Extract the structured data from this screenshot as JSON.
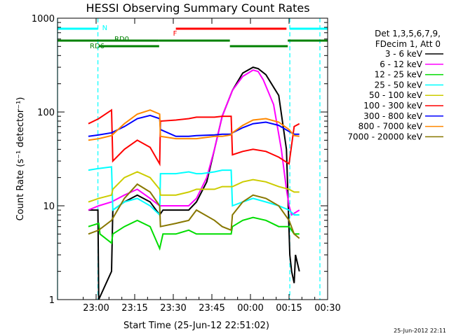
{
  "chart_data": {
    "type": "line",
    "title": "HESSI Observing Summary Count Rates",
    "xlabel": "Start Time (25-Jun-12 22:51:02)",
    "ylabel": "Count Rate (s⁻¹ detector⁻¹)",
    "xlim_minutes": [
      -6,
      99
    ],
    "x_ticks": [
      {
        "min": 9,
        "label": "23:00"
      },
      {
        "min": 24,
        "label": "23:15"
      },
      {
        "min": 39,
        "label": "23:30"
      },
      {
        "min": 54,
        "label": "23:45"
      },
      {
        "min": 69,
        "label": "00:00"
      },
      {
        "min": 84,
        "label": "00:15"
      },
      {
        "min": 99,
        "label": "00:30"
      }
    ],
    "y_scale": "log",
    "ylim": [
      1,
      1000
    ],
    "y_ticks": [
      {
        "value": 1,
        "label": "1"
      },
      {
        "value": 10,
        "label": "10"
      },
      {
        "value": 100,
        "label": "100"
      },
      {
        "value": 1000,
        "label": "1000"
      }
    ],
    "legend_header": [
      "Det 1,3,5,6,7,9,",
      "FDecim 1, Att 0"
    ],
    "series": [
      {
        "name": "3 - 6 keV",
        "color": "#000000",
        "x": [
          6,
          9.7,
          10,
          15,
          15.5,
          20,
          25,
          30,
          33.7,
          35,
          40,
          45,
          48,
          52,
          55,
          58,
          62,
          66,
          70,
          72,
          75,
          80,
          83,
          84.3,
          85,
          86,
          86.5,
          88
        ],
        "y": [
          9,
          9,
          1,
          2,
          9,
          11,
          13,
          11,
          8,
          9,
          9,
          9,
          11,
          18,
          40,
          90,
          170,
          260,
          300,
          290,
          250,
          150,
          40,
          3,
          2,
          1.5,
          3,
          2
        ]
      },
      {
        "name": "6 - 12 keV",
        "color": "#ff00ff",
        "x": [
          6,
          10,
          15,
          20,
          25,
          30,
          33.7,
          35,
          40,
          45,
          48,
          52,
          55,
          58,
          62,
          66,
          70,
          72,
          74,
          78,
          81,
          83,
          84,
          85,
          88
        ],
        "y": [
          9,
          10,
          11,
          13,
          15,
          12,
          10,
          10,
          10,
          10,
          12,
          20,
          40,
          90,
          170,
          240,
          280,
          270,
          220,
          120,
          40,
          15,
          10,
          8,
          9
        ]
      },
      {
        "name": "12 - 25 keV",
        "color": "#00dd00",
        "x": [
          6,
          10,
          10.5,
          15,
          15.5,
          20,
          25,
          30,
          33.7,
          35,
          40,
          45,
          48,
          52,
          55,
          58,
          61.5,
          62,
          66,
          70,
          75,
          80,
          84,
          86,
          88
        ],
        "y": [
          6,
          6.5,
          5,
          4,
          5,
          6,
          7,
          6,
          3.5,
          5,
          5,
          5.5,
          5,
          5,
          5,
          5,
          5,
          6,
          7,
          7.5,
          7,
          6,
          6,
          5,
          5
        ]
      },
      {
        "name": "25 - 50 keV",
        "color": "#00ffff",
        "x": [
          6,
          10,
          15,
          15.5,
          20,
          25,
          30,
          33.7,
          34,
          40,
          45,
          48,
          50,
          55,
          58,
          61.5,
          62,
          66,
          70,
          75,
          80,
          84,
          86,
          88
        ],
        "y": [
          24,
          25,
          26,
          9,
          11,
          12,
          10,
          8,
          22,
          22,
          23,
          22,
          22,
          23,
          24,
          24,
          10,
          11,
          12,
          11,
          10,
          9,
          8,
          8
        ]
      },
      {
        "name": "50 - 100 keV",
        "color": "#cccc00",
        "x": [
          6,
          10,
          15,
          15.5,
          20,
          25,
          30,
          33.7,
          34,
          40,
          45,
          48,
          55,
          58,
          61.5,
          62,
          66,
          70,
          75,
          80,
          84,
          86,
          88
        ],
        "y": [
          11,
          12,
          13,
          15,
          20,
          23,
          20,
          15,
          13,
          13,
          14,
          15,
          15,
          16,
          16,
          16,
          18,
          19,
          18,
          16,
          15,
          14,
          14
        ]
      },
      {
        "name": "100 - 300 keV",
        "color": "#ff0000",
        "x": [
          6,
          10,
          15,
          15.5,
          20,
          25,
          30,
          33.7,
          34,
          40,
          45,
          48,
          55,
          58,
          61.5,
          62,
          66,
          70,
          75,
          80,
          84,
          86,
          88
        ],
        "y": [
          75,
          85,
          105,
          30,
          40,
          50,
          42,
          28,
          80,
          82,
          85,
          88,
          88,
          90,
          90,
          35,
          38,
          40,
          38,
          33,
          28,
          70,
          75
        ]
      },
      {
        "name": "300 - 800 keV",
        "color": "#0000ff",
        "x": [
          6,
          10,
          15,
          20,
          25,
          30,
          33.7,
          34,
          40,
          45,
          48,
          55,
          58,
          61.5,
          62,
          66,
          70,
          75,
          80,
          84,
          86,
          88
        ],
        "y": [
          55,
          57,
          60,
          70,
          85,
          92,
          85,
          65,
          55,
          55,
          56,
          57,
          58,
          58,
          60,
          68,
          75,
          78,
          72,
          62,
          58,
          58
        ]
      },
      {
        "name": "800 - 7000 keV",
        "color": "#ff8800",
        "x": [
          6,
          10,
          15,
          20,
          25,
          30,
          33.7,
          34,
          40,
          45,
          48,
          55,
          58,
          61.5,
          62,
          66,
          70,
          75,
          80,
          84,
          86,
          88
        ],
        "y": [
          50,
          52,
          56,
          75,
          95,
          105,
          95,
          55,
          52,
          52,
          52,
          55,
          55,
          57,
          60,
          72,
          82,
          85,
          78,
          65,
          56,
          55
        ]
      },
      {
        "name": "7000 - 20000 keV",
        "color": "#887700",
        "x": [
          6,
          10,
          15,
          20,
          25,
          30,
          33.7,
          34,
          40,
          45,
          48,
          55,
          58,
          61.5,
          62,
          66,
          70,
          75,
          80,
          84,
          86,
          88
        ],
        "y": [
          5,
          5.5,
          7,
          12,
          17,
          14,
          10,
          6,
          6.5,
          7,
          9,
          7,
          6,
          5.5,
          8,
          11,
          13,
          12,
          10,
          7,
          5,
          4.5
        ]
      }
    ],
    "cyan_markers_min": [
      -6,
      9.7,
      84.3,
      96
    ],
    "flags": [
      {
        "label": "N",
        "color": "#00ffff",
        "row": "top",
        "segments": [
          [
            -6,
            9.7
          ],
          [
            84.3,
            99
          ]
        ]
      },
      {
        "label": "F",
        "color": "#ff0000",
        "row": "top",
        "segments": [
          [
            40,
            83
          ]
        ]
      },
      {
        "label": "RD0",
        "color": "#008000",
        "row": "mid",
        "segments": [
          [
            -6,
            33.5
          ],
          [
            33.5,
            61
          ],
          [
            83.5,
            99
          ]
        ]
      },
      {
        "label": "RD6",
        "color": "#008000",
        "row": "low",
        "segments": [
          [
            10,
            33.5
          ],
          [
            61,
            83.5
          ]
        ]
      }
    ]
  },
  "footer_timestamp": "25-Jun-2012 22:11"
}
